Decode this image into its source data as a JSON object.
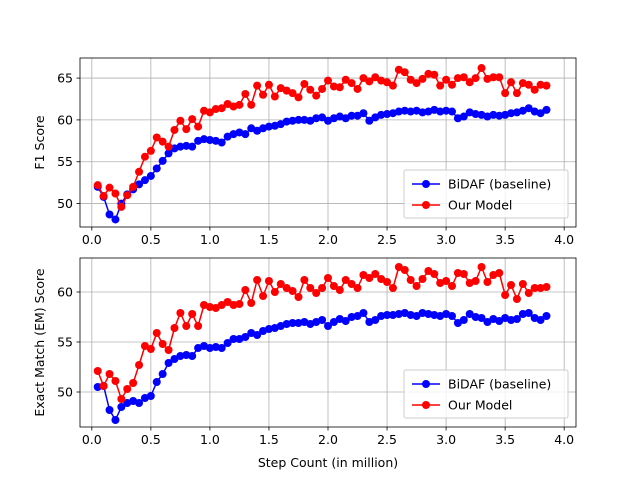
{
  "chart_data": [
    {
      "type": "line",
      "xlabel": "",
      "ylabel": "F1 Score",
      "xlim": [
        -0.1,
        4.1
      ],
      "ylim": [
        47.2,
        67.4
      ],
      "xticks": [
        0.0,
        0.5,
        1.0,
        1.5,
        2.0,
        2.5,
        3.0,
        3.5,
        4.0
      ],
      "xtick_labels": [
        "0.0",
        "0.5",
        "1.0",
        "1.5",
        "2.0",
        "2.5",
        "3.0",
        "3.5",
        "4.0"
      ],
      "yticks": [
        50,
        55,
        60,
        65
      ],
      "ytick_labels": [
        "50",
        "55",
        "60",
        "65"
      ],
      "grid": true,
      "legend_position": "lower-right",
      "series": [
        {
          "name": "BiDAF (baseline)",
          "color": "#0000ff",
          "x": [
            0.05,
            0.1,
            0.15,
            0.2,
            0.25,
            0.3,
            0.35,
            0.4,
            0.45,
            0.5,
            0.55,
            0.6,
            0.65,
            0.7,
            0.75,
            0.8,
            0.85,
            0.9,
            0.95,
            1.0,
            1.05,
            1.1,
            1.15,
            1.2,
            1.25,
            1.3,
            1.35,
            1.4,
            1.45,
            1.5,
            1.55,
            1.6,
            1.65,
            1.7,
            1.75,
            1.8,
            1.85,
            1.9,
            1.95,
            2.0,
            2.05,
            2.1,
            2.15,
            2.2,
            2.25,
            2.3,
            2.35,
            2.4,
            2.45,
            2.5,
            2.55,
            2.6,
            2.65,
            2.7,
            2.75,
            2.8,
            2.85,
            2.9,
            2.95,
            3.0,
            3.05,
            3.1,
            3.15,
            3.2,
            3.25,
            3.3,
            3.35,
            3.4,
            3.45,
            3.5,
            3.55,
            3.6,
            3.65,
            3.7,
            3.75,
            3.8,
            3.85
          ],
          "y": [
            52.0,
            50.8,
            48.7,
            48.1,
            50.0,
            51.1,
            51.7,
            52.3,
            52.8,
            53.3,
            54.2,
            55.1,
            56.0,
            56.6,
            56.8,
            56.9,
            56.8,
            57.5,
            57.7,
            57.6,
            57.5,
            57.3,
            58.0,
            58.3,
            58.5,
            58.3,
            59.0,
            58.7,
            59.0,
            59.2,
            59.3,
            59.5,
            59.8,
            59.9,
            60.0,
            60.0,
            59.9,
            60.2,
            60.3,
            59.9,
            60.2,
            60.4,
            60.2,
            60.5,
            60.5,
            60.8,
            59.9,
            60.3,
            60.6,
            60.7,
            60.8,
            61.0,
            61.1,
            61.0,
            61.1,
            60.9,
            61.0,
            61.2,
            61.0,
            61.1,
            61.0,
            60.2,
            60.4,
            60.9,
            60.7,
            60.6,
            60.4,
            60.6,
            60.5,
            60.6,
            60.8,
            60.9,
            61.1,
            61.4,
            61.0,
            60.8,
            61.2
          ]
        },
        {
          "name": "Our Model",
          "color": "#ff0000",
          "x": [
            0.05,
            0.1,
            0.15,
            0.2,
            0.25,
            0.3,
            0.35,
            0.4,
            0.45,
            0.5,
            0.55,
            0.6,
            0.65,
            0.7,
            0.75,
            0.8,
            0.85,
            0.9,
            0.95,
            1.0,
            1.05,
            1.1,
            1.15,
            1.2,
            1.25,
            1.3,
            1.35,
            1.4,
            1.45,
            1.5,
            1.55,
            1.6,
            1.65,
            1.7,
            1.75,
            1.8,
            1.85,
            1.9,
            1.95,
            2.0,
            2.05,
            2.1,
            2.15,
            2.2,
            2.25,
            2.3,
            2.35,
            2.4,
            2.45,
            2.5,
            2.55,
            2.6,
            2.65,
            2.7,
            2.75,
            2.8,
            2.85,
            2.9,
            2.95,
            3.0,
            3.05,
            3.1,
            3.15,
            3.2,
            3.25,
            3.3,
            3.35,
            3.4,
            3.45,
            3.5,
            3.55,
            3.6,
            3.65,
            3.7,
            3.75,
            3.8,
            3.85
          ],
          "y": [
            52.2,
            50.9,
            51.9,
            51.2,
            49.6,
            51.0,
            52.0,
            53.8,
            55.6,
            56.3,
            57.9,
            57.4,
            56.8,
            58.8,
            59.9,
            58.9,
            60.1,
            59.2,
            61.1,
            60.9,
            61.3,
            61.4,
            61.9,
            61.6,
            61.8,
            63.1,
            61.8,
            64.1,
            63.0,
            64.2,
            62.8,
            63.8,
            63.5,
            63.2,
            62.7,
            64.3,
            63.6,
            62.9,
            63.7,
            64.7,
            64.0,
            63.9,
            64.8,
            64.4,
            63.7,
            65.0,
            64.6,
            65.1,
            64.7,
            64.5,
            64.1,
            66.0,
            65.7,
            64.8,
            64.4,
            64.9,
            65.5,
            65.4,
            64.1,
            64.8,
            64.2,
            65.0,
            65.1,
            64.5,
            65.0,
            66.2,
            64.9,
            65.1,
            65.1,
            63.2,
            64.5,
            63.2,
            64.4,
            64.2,
            63.6,
            64.2,
            64.1
          ]
        }
      ]
    },
    {
      "type": "line",
      "xlabel": "Step Count (in million)",
      "ylabel": "Exact Match (EM) Score",
      "xlim": [
        -0.1,
        4.1
      ],
      "ylim": [
        46.5,
        63.4
      ],
      "xticks": [
        0.0,
        0.5,
        1.0,
        1.5,
        2.0,
        2.5,
        3.0,
        3.5,
        4.0
      ],
      "xtick_labels": [
        "0.0",
        "0.5",
        "1.0",
        "1.5",
        "2.0",
        "2.5",
        "3.0",
        "3.5",
        "4.0"
      ],
      "yticks": [
        50,
        55,
        60
      ],
      "ytick_labels": [
        "50",
        "55",
        "60"
      ],
      "grid": true,
      "legend_position": "lower-right",
      "series": [
        {
          "name": "BiDAF (baseline)",
          "color": "#0000ff",
          "x": [
            0.05,
            0.1,
            0.15,
            0.2,
            0.25,
            0.3,
            0.35,
            0.4,
            0.45,
            0.5,
            0.55,
            0.6,
            0.65,
            0.7,
            0.75,
            0.8,
            0.85,
            0.9,
            0.95,
            1.0,
            1.05,
            1.1,
            1.15,
            1.2,
            1.25,
            1.3,
            1.35,
            1.4,
            1.45,
            1.5,
            1.55,
            1.6,
            1.65,
            1.7,
            1.75,
            1.8,
            1.85,
            1.9,
            1.95,
            2.0,
            2.05,
            2.1,
            2.15,
            2.2,
            2.25,
            2.3,
            2.35,
            2.4,
            2.45,
            2.5,
            2.55,
            2.6,
            2.65,
            2.7,
            2.75,
            2.8,
            2.85,
            2.9,
            2.95,
            3.0,
            3.05,
            3.1,
            3.15,
            3.2,
            3.25,
            3.3,
            3.35,
            3.4,
            3.45,
            3.5,
            3.55,
            3.6,
            3.65,
            3.7,
            3.75,
            3.8,
            3.85
          ],
          "y": [
            50.5,
            50.6,
            48.2,
            47.2,
            48.5,
            48.9,
            49.1,
            48.9,
            49.4,
            49.6,
            51.0,
            51.8,
            52.9,
            53.3,
            53.6,
            53.7,
            53.6,
            54.4,
            54.6,
            54.4,
            54.5,
            54.4,
            54.9,
            55.3,
            55.3,
            55.5,
            55.9,
            55.7,
            56.1,
            56.3,
            56.4,
            56.6,
            56.8,
            56.9,
            56.9,
            57.0,
            56.8,
            57.0,
            57.2,
            56.6,
            57.0,
            57.3,
            57.1,
            57.5,
            57.6,
            57.9,
            57.0,
            57.2,
            57.6,
            57.7,
            57.7,
            57.8,
            57.9,
            57.7,
            57.6,
            57.9,
            57.8,
            57.7,
            57.6,
            57.8,
            57.6,
            56.9,
            57.2,
            57.8,
            57.5,
            57.4,
            57.0,
            57.3,
            57.1,
            57.4,
            57.2,
            57.3,
            57.8,
            57.9,
            57.4,
            57.2,
            57.6
          ]
        },
        {
          "name": "Our Model",
          "color": "#ff0000",
          "x": [
            0.05,
            0.1,
            0.15,
            0.2,
            0.25,
            0.3,
            0.35,
            0.4,
            0.45,
            0.5,
            0.55,
            0.6,
            0.65,
            0.7,
            0.75,
            0.8,
            0.85,
            0.9,
            0.95,
            1.0,
            1.05,
            1.1,
            1.15,
            1.2,
            1.25,
            1.3,
            1.35,
            1.4,
            1.45,
            1.5,
            1.55,
            1.6,
            1.65,
            1.7,
            1.75,
            1.8,
            1.85,
            1.9,
            1.95,
            2.0,
            2.05,
            2.1,
            2.15,
            2.2,
            2.25,
            2.3,
            2.35,
            2.4,
            2.45,
            2.5,
            2.55,
            2.6,
            2.65,
            2.7,
            2.75,
            2.8,
            2.85,
            2.9,
            2.95,
            3.0,
            3.05,
            3.1,
            3.15,
            3.2,
            3.25,
            3.3,
            3.35,
            3.4,
            3.45,
            3.5,
            3.55,
            3.6,
            3.65,
            3.7,
            3.75,
            3.8,
            3.85
          ],
          "y": [
            52.1,
            50.6,
            51.8,
            51.1,
            49.3,
            50.3,
            50.9,
            52.7,
            54.6,
            54.3,
            55.9,
            54.8,
            54.2,
            56.4,
            57.9,
            56.6,
            57.8,
            56.6,
            58.7,
            58.5,
            58.4,
            58.7,
            59.0,
            58.7,
            58.8,
            60.2,
            58.9,
            61.2,
            59.6,
            61.1,
            60.0,
            60.8,
            60.4,
            60.1,
            59.5,
            61.2,
            60.4,
            59.9,
            60.4,
            61.4,
            60.6,
            60.2,
            61.2,
            60.8,
            60.4,
            61.7,
            61.4,
            61.8,
            61.3,
            61.0,
            60.4,
            62.5,
            62.2,
            61.2,
            60.6,
            61.3,
            62.1,
            61.8,
            60.9,
            61.1,
            60.6,
            61.9,
            61.8,
            60.9,
            61.1,
            62.5,
            61.0,
            61.7,
            61.9,
            59.7,
            60.7,
            59.3,
            60.8,
            59.9,
            60.4,
            60.4,
            60.5
          ]
        }
      ]
    }
  ]
}
